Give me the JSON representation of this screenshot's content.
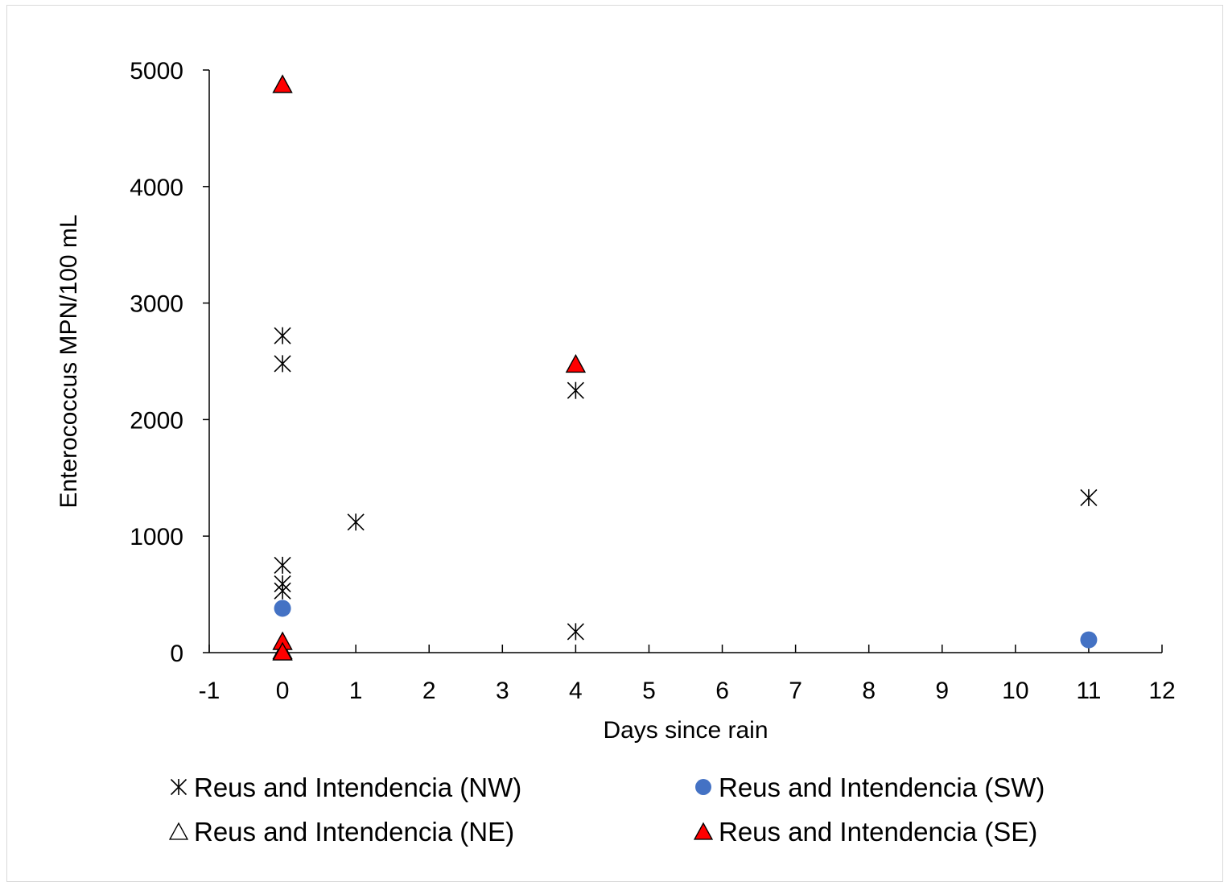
{
  "chart_data": {
    "type": "scatter",
    "xlabel": "Days since rain",
    "ylabel": "Enterococcus MPN/100 mL",
    "xlim": [
      -1,
      12
    ],
    "ylim": [
      0,
      5000
    ],
    "xticks": [
      -1,
      0,
      1,
      2,
      3,
      4,
      5,
      6,
      7,
      8,
      9,
      10,
      11,
      12
    ],
    "yticks": [
      0,
      1000,
      2000,
      3000,
      4000,
      5000
    ],
    "grid": false,
    "legend_position": "bottom",
    "series": [
      {
        "name": "Reus and Intendencia (NW)",
        "marker": "asterisk",
        "color": "#000000",
        "points": [
          [
            0,
            2720
          ],
          [
            0,
            2480
          ],
          [
            0,
            750
          ],
          [
            0,
            590
          ],
          [
            0,
            530
          ],
          [
            1,
            1120
          ],
          [
            4,
            2250
          ],
          [
            4,
            180
          ],
          [
            11,
            1330
          ]
        ]
      },
      {
        "name": "Reus and Intendencia (SW)",
        "marker": "circle",
        "color": "#4472C4",
        "points": [
          [
            0,
            380
          ],
          [
            11,
            110
          ]
        ]
      },
      {
        "name": "Reus and Intendencia (NE)",
        "marker": "triangle-open",
        "color": "#000000",
        "points": [
          [
            0,
            20
          ]
        ]
      },
      {
        "name": "Reus and Intendencia (SE)",
        "marker": "triangle-filled",
        "color": "#FF0000",
        "points": [
          [
            0,
            4880
          ],
          [
            0,
            100
          ],
          [
            0,
            10
          ],
          [
            4,
            2480
          ]
        ]
      }
    ]
  }
}
